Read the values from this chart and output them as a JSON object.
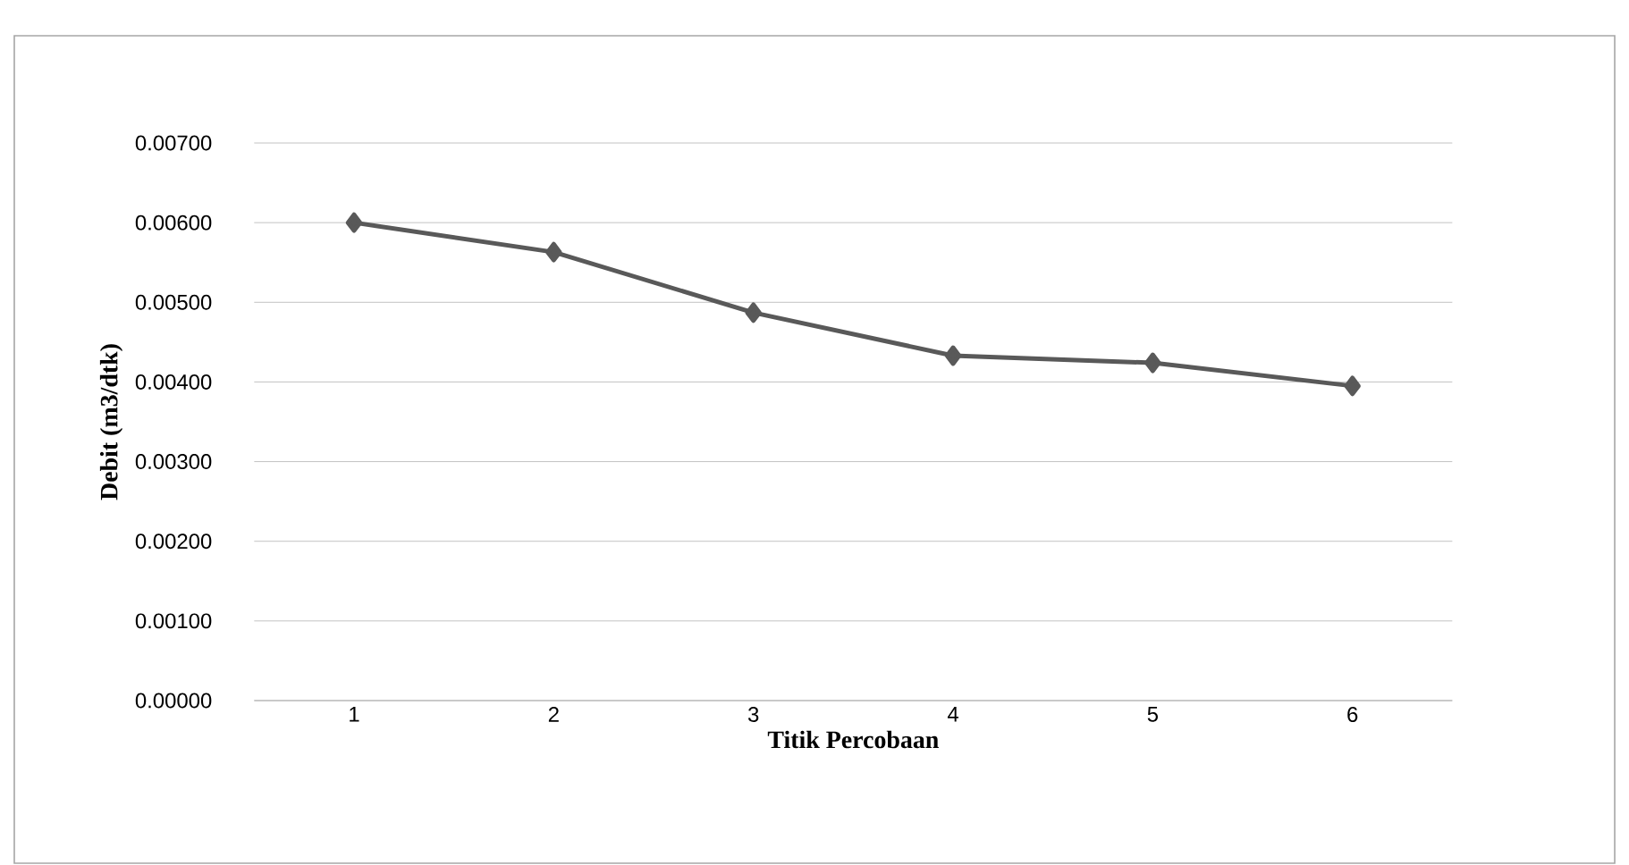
{
  "chart_data": {
    "type": "line",
    "xlabel": "Titik Percobaan",
    "ylabel": "Debit (m3/dtk)",
    "categories": [
      "1",
      "2",
      "3",
      "4",
      "5",
      "6"
    ],
    "series": [
      {
        "color": "#595959",
        "values": [
          0.006,
          0.00563,
          0.00487,
          0.00433,
          0.00424,
          0.00395
        ]
      }
    ],
    "ylim": [
      0,
      0.007
    ],
    "yticks": [
      {
        "value": 0,
        "label": "0.00000"
      },
      {
        "value": 0.001,
        "label": "0.00100"
      },
      {
        "value": 0.002,
        "label": "0.00200"
      },
      {
        "value": 0.003,
        "label": "0.00300"
      },
      {
        "value": 0.004,
        "label": "0.00400"
      },
      {
        "value": 0.005,
        "label": "0.00500"
      },
      {
        "value": 0.006,
        "label": "0.00600"
      },
      {
        "value": 0.007,
        "label": "0.00700"
      }
    ],
    "grid": "y",
    "marker": "diamond",
    "line_style": "solid"
  }
}
